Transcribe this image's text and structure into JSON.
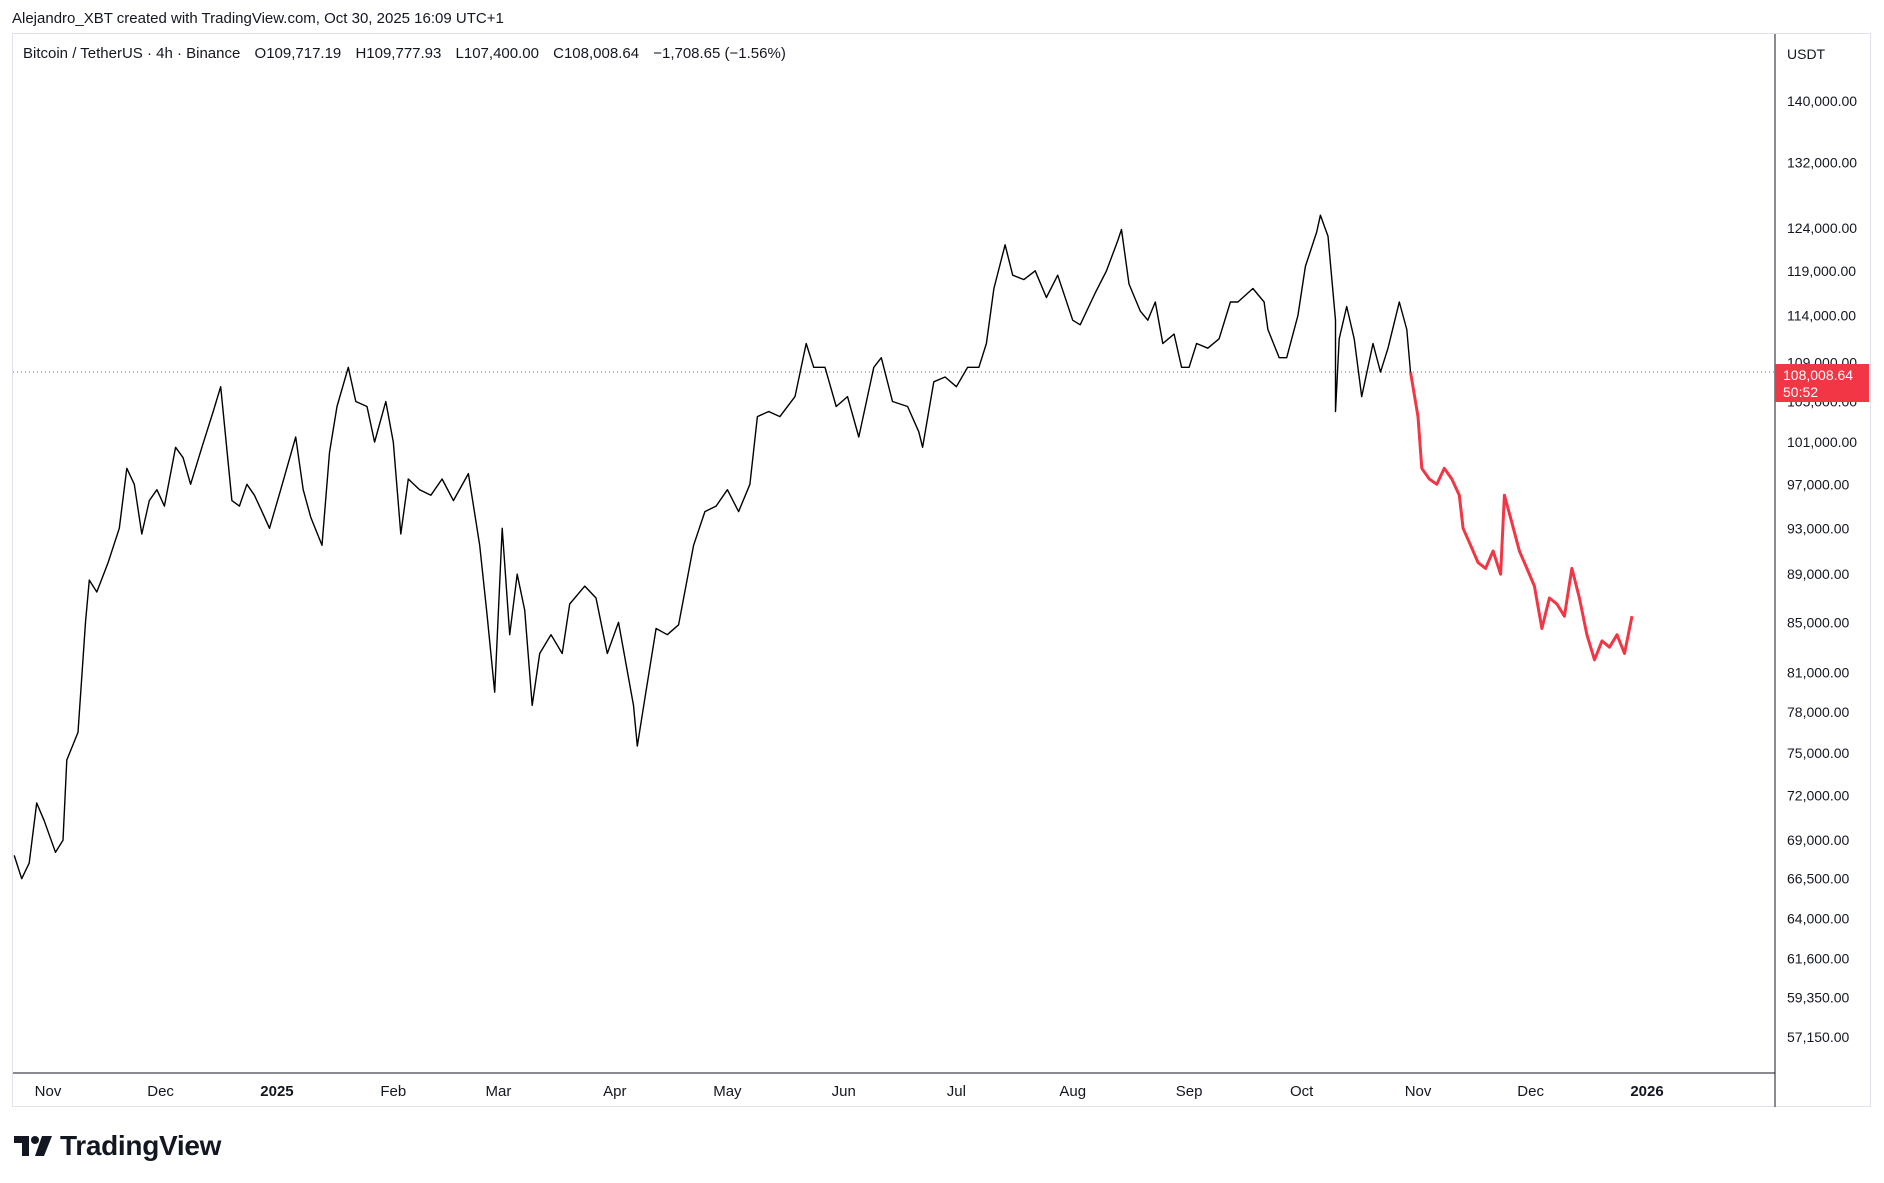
{
  "attribution": "Alejandro_XBT created with TradingView.com, Oct 30, 2025 16:09 UTC+1",
  "legend": {
    "symbol": "Bitcoin / TetherUS · 4h · Binance",
    "open_label": "O",
    "open": "109,717.19",
    "high_label": "H",
    "high": "109,777.93",
    "low_label": "L",
    "low": "107,400.00",
    "close_label": "C",
    "close": "108,008.64",
    "change": "−1,708.65 (−1.56%)"
  },
  "currency": "USDT",
  "last_price": {
    "price": "108,008.64",
    "countdown": "50:52"
  },
  "brand": "TradingView",
  "colors": {
    "line": "#000000",
    "projection": "#f23645",
    "price_line": "#f23645",
    "axis_text": "#131722"
  },
  "chart_data": {
    "type": "line",
    "scale": "log",
    "y_ticks": [
      "140,000.00",
      "132,000.00",
      "124,000.00",
      "119,000.00",
      "114,000.00",
      "109,000.00",
      "105,000.00",
      "101,000.00",
      "97,000.00",
      "93,000.00",
      "89,000.00",
      "85,000.00",
      "81,000.00",
      "78,000.00",
      "75,000.00",
      "72,000.00",
      "69,000.00",
      "66,500.00",
      "64,000.00",
      "61,600.00",
      "59,350.00",
      "57,150.00"
    ],
    "y_tick_values": [
      140000,
      132000,
      124000,
      119000,
      114000,
      109000,
      105000,
      101000,
      97000,
      93000,
      89000,
      85000,
      81000,
      78000,
      75000,
      72000,
      69000,
      66500,
      64000,
      61600,
      59350,
      57150
    ],
    "x_ticks": [
      {
        "label": "Nov",
        "date": "2024-11-01"
      },
      {
        "label": "Dec",
        "date": "2024-12-01"
      },
      {
        "label": "2025",
        "date": "2025-01-01",
        "bold": true
      },
      {
        "label": "Feb",
        "date": "2025-02-01"
      },
      {
        "label": "Mar",
        "date": "2025-03-01"
      },
      {
        "label": "Apr",
        "date": "2025-04-01"
      },
      {
        "label": "May",
        "date": "2025-05-01"
      },
      {
        "label": "Jun",
        "date": "2025-06-01"
      },
      {
        "label": "Jul",
        "date": "2025-07-01"
      },
      {
        "label": "Aug",
        "date": "2025-08-01"
      },
      {
        "label": "Sep",
        "date": "2025-09-01"
      },
      {
        "label": "Oct",
        "date": "2025-10-01"
      },
      {
        "label": "Nov",
        "date": "2025-11-01"
      },
      {
        "label": "Dec",
        "date": "2025-12-01"
      },
      {
        "label": "2026",
        "date": "2026-01-01",
        "bold": true
      }
    ],
    "x_range": [
      "2024-10-23",
      "2026-02-11"
    ],
    "y_range": [
      55000,
      150000
    ],
    "series": [
      {
        "points": [
          [
            "2024-10-23",
            68000
          ],
          [
            "2024-10-25",
            66500
          ],
          [
            "2024-10-27",
            67500
          ],
          [
            "2024-10-29",
            71500
          ],
          [
            "2024-10-31",
            70300
          ],
          [
            "2024-11-03",
            68200
          ],
          [
            "2024-11-05",
            69000
          ],
          [
            "2024-11-06",
            74500
          ],
          [
            "2024-11-09",
            76500
          ],
          [
            "2024-11-11",
            85000
          ],
          [
            "2024-11-12",
            88500
          ],
          [
            "2024-11-14",
            87500
          ],
          [
            "2024-11-17",
            90000
          ],
          [
            "2024-11-20",
            93000
          ],
          [
            "2024-11-22",
            98500
          ],
          [
            "2024-11-24",
            97000
          ],
          [
            "2024-11-26",
            92500
          ],
          [
            "2024-11-28",
            95500
          ],
          [
            "2024-11-30",
            96500
          ],
          [
            "2024-12-02",
            95000
          ],
          [
            "2024-12-05",
            100500
          ],
          [
            "2024-12-07",
            99500
          ],
          [
            "2024-12-09",
            97000
          ],
          [
            "2024-12-12",
            100500
          ],
          [
            "2024-12-15",
            104000
          ],
          [
            "2024-12-17",
            106500
          ],
          [
            "2024-12-19",
            99000
          ],
          [
            "2024-12-20",
            95500
          ],
          [
            "2024-12-22",
            95000
          ],
          [
            "2024-12-24",
            97000
          ],
          [
            "2024-12-26",
            96000
          ],
          [
            "2024-12-28",
            94500
          ],
          [
            "2024-12-30",
            93000
          ],
          [
            "2025-01-02",
            96500
          ],
          [
            "2025-01-06",
            101500
          ],
          [
            "2025-01-08",
            96500
          ],
          [
            "2025-01-10",
            94000
          ],
          [
            "2025-01-13",
            91500
          ],
          [
            "2025-01-15",
            100000
          ],
          [
            "2025-01-17",
            104500
          ],
          [
            "2025-01-20",
            108500
          ],
          [
            "2025-01-22",
            105000
          ],
          [
            "2025-01-25",
            104500
          ],
          [
            "2025-01-27",
            101000
          ],
          [
            "2025-01-30",
            105000
          ],
          [
            "2025-02-01",
            101000
          ],
          [
            "2025-02-03",
            92500
          ],
          [
            "2025-02-05",
            97500
          ],
          [
            "2025-02-08",
            96500
          ],
          [
            "2025-02-11",
            96000
          ],
          [
            "2025-02-14",
            97500
          ],
          [
            "2025-02-17",
            95500
          ],
          [
            "2025-02-21",
            98000
          ],
          [
            "2025-02-24",
            91500
          ],
          [
            "2025-02-26",
            85500
          ],
          [
            "2025-02-28",
            79500
          ],
          [
            "2025-03-02",
            93000
          ],
          [
            "2025-03-04",
            84000
          ],
          [
            "2025-03-06",
            89000
          ],
          [
            "2025-03-08",
            86000
          ],
          [
            "2025-03-10",
            78500
          ],
          [
            "2025-03-12",
            82500
          ],
          [
            "2025-03-15",
            84000
          ],
          [
            "2025-03-18",
            82500
          ],
          [
            "2025-03-20",
            86500
          ],
          [
            "2025-03-24",
            88000
          ],
          [
            "2025-03-27",
            87000
          ],
          [
            "2025-03-30",
            82500
          ],
          [
            "2025-04-02",
            85000
          ],
          [
            "2025-04-06",
            78500
          ],
          [
            "2025-04-07",
            75500
          ],
          [
            "2025-04-09",
            79000
          ],
          [
            "2025-04-12",
            84500
          ],
          [
            "2025-04-15",
            84000
          ],
          [
            "2025-04-18",
            84800
          ],
          [
            "2025-04-22",
            91500
          ],
          [
            "2025-04-25",
            94500
          ],
          [
            "2025-04-28",
            95000
          ],
          [
            "2025-05-01",
            96500
          ],
          [
            "2025-05-04",
            94500
          ],
          [
            "2025-05-07",
            97000
          ],
          [
            "2025-05-09",
            103500
          ],
          [
            "2025-05-12",
            104000
          ],
          [
            "2025-05-15",
            103500
          ],
          [
            "2025-05-19",
            105500
          ],
          [
            "2025-05-22",
            111000
          ],
          [
            "2025-05-24",
            108500
          ],
          [
            "2025-05-27",
            108500
          ],
          [
            "2025-05-30",
            104500
          ],
          [
            "2025-06-02",
            105500
          ],
          [
            "2025-06-05",
            101500
          ],
          [
            "2025-06-09",
            108500
          ],
          [
            "2025-06-11",
            109500
          ],
          [
            "2025-06-14",
            105000
          ],
          [
            "2025-06-18",
            104500
          ],
          [
            "2025-06-21",
            102000
          ],
          [
            "2025-06-22",
            100500
          ],
          [
            "2025-06-25",
            107000
          ],
          [
            "2025-06-28",
            107500
          ],
          [
            "2025-07-01",
            106500
          ],
          [
            "2025-07-04",
            108500
          ],
          [
            "2025-07-07",
            108500
          ],
          [
            "2025-07-09",
            111000
          ],
          [
            "2025-07-11",
            117000
          ],
          [
            "2025-07-14",
            122000
          ],
          [
            "2025-07-16",
            118500
          ],
          [
            "2025-07-19",
            118000
          ],
          [
            "2025-07-22",
            119000
          ],
          [
            "2025-07-25",
            116000
          ],
          [
            "2025-07-28",
            118500
          ],
          [
            "2025-08-01",
            113500
          ],
          [
            "2025-08-03",
            113000
          ],
          [
            "2025-08-07",
            116500
          ],
          [
            "2025-08-10",
            119000
          ],
          [
            "2025-08-13",
            122500
          ],
          [
            "2025-08-14",
            123800
          ],
          [
            "2025-08-16",
            117500
          ],
          [
            "2025-08-19",
            114500
          ],
          [
            "2025-08-21",
            113500
          ],
          [
            "2025-08-23",
            115500
          ],
          [
            "2025-08-25",
            111000
          ],
          [
            "2025-08-28",
            112000
          ],
          [
            "2025-08-30",
            108500
          ],
          [
            "2025-09-01",
            108500
          ],
          [
            "2025-09-03",
            111000
          ],
          [
            "2025-09-06",
            110500
          ],
          [
            "2025-09-09",
            111500
          ],
          [
            "2025-09-12",
            115500
          ],
          [
            "2025-09-14",
            115500
          ],
          [
            "2025-09-18",
            117000
          ],
          [
            "2025-09-21",
            115500
          ],
          [
            "2025-09-22",
            112500
          ],
          [
            "2025-09-25",
            109500
          ],
          [
            "2025-09-27",
            109500
          ],
          [
            "2025-09-30",
            114000
          ],
          [
            "2025-10-02",
            119500
          ],
          [
            "2025-10-05",
            123500
          ],
          [
            "2025-10-06",
            125500
          ],
          [
            "2025-10-08",
            123000
          ],
          [
            "2025-10-10",
            113500
          ],
          [
            "2025-10-10",
            104000
          ],
          [
            "2025-10-11",
            111500
          ],
          [
            "2025-10-13",
            115000
          ],
          [
            "2025-10-15",
            111500
          ],
          [
            "2025-10-17",
            105500
          ],
          [
            "2025-10-20",
            111000
          ],
          [
            "2025-10-22",
            108000
          ],
          [
            "2025-10-24",
            110500
          ],
          [
            "2025-10-27",
            115500
          ],
          [
            "2025-10-29",
            112500
          ],
          [
            "2025-10-30",
            108008.64
          ]
        ]
      },
      {
        "points": [
          [
            "2025-10-30",
            108008.64
          ],
          [
            "2025-11-01",
            103500
          ],
          [
            "2025-11-02",
            98500
          ],
          [
            "2025-11-04",
            97500
          ],
          [
            "2025-11-06",
            97000
          ],
          [
            "2025-11-08",
            98500
          ],
          [
            "2025-11-10",
            97500
          ],
          [
            "2025-11-12",
            96000
          ],
          [
            "2025-11-13",
            93000
          ],
          [
            "2025-11-15",
            91500
          ],
          [
            "2025-11-17",
            90000
          ],
          [
            "2025-11-19",
            89500
          ],
          [
            "2025-11-21",
            91000
          ],
          [
            "2025-11-23",
            89000
          ],
          [
            "2025-11-24",
            96000
          ],
          [
            "2025-11-26",
            93500
          ],
          [
            "2025-11-28",
            91000
          ],
          [
            "2025-11-30",
            89500
          ],
          [
            "2025-12-02",
            88000
          ],
          [
            "2025-12-04",
            84500
          ],
          [
            "2025-12-06",
            87000
          ],
          [
            "2025-12-08",
            86500
          ],
          [
            "2025-12-10",
            85500
          ],
          [
            "2025-12-12",
            89500
          ],
          [
            "2025-12-14",
            87000
          ],
          [
            "2025-12-16",
            84000
          ],
          [
            "2025-12-18",
            82000
          ],
          [
            "2025-12-20",
            83500
          ],
          [
            "2025-12-22",
            83000
          ],
          [
            "2025-12-24",
            84000
          ],
          [
            "2025-12-26",
            82500
          ],
          [
            "2025-12-28",
            85500
          ]
        ]
      }
    ],
    "reference_line": 108008.64
  }
}
